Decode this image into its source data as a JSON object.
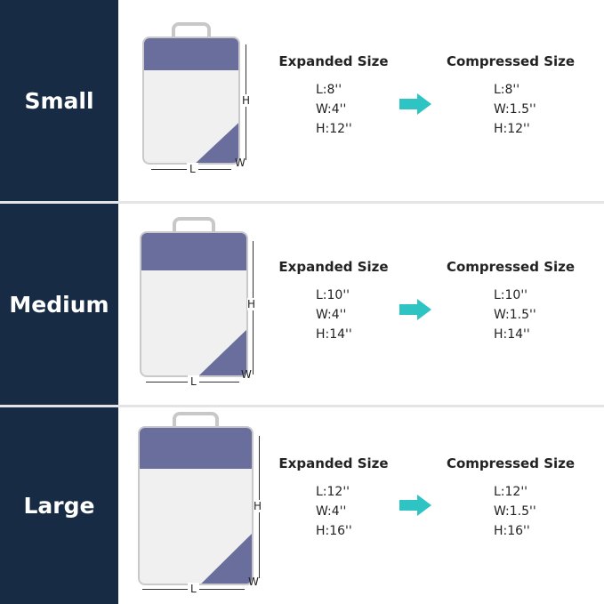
{
  "headers": {
    "expanded": "Expanded Size",
    "compressed": "Compressed Size"
  },
  "dimension_labels": {
    "length": "L",
    "width": "W",
    "height": "H"
  },
  "colors": {
    "sidebar": "#172c44",
    "arrow": "#2ec4c4",
    "bag_accent": "#6a6e9c"
  },
  "sizes": [
    {
      "name": "Small",
      "expanded": {
        "l": "L:8''",
        "w": "W:4''",
        "h": "H:12''"
      },
      "compressed": {
        "l": "L:8''",
        "w": "W:1.5''",
        "h": "H:12''"
      }
    },
    {
      "name": "Medium",
      "expanded": {
        "l": "L:10''",
        "w": "W:4''",
        "h": "H:14''"
      },
      "compressed": {
        "l": "L:10''",
        "w": "W:1.5''",
        "h": "H:14''"
      }
    },
    {
      "name": "Large",
      "expanded": {
        "l": "L:12''",
        "w": "W:4''",
        "h": "H:16''"
      },
      "compressed": {
        "l": "L:12''",
        "w": "W:1.5''",
        "h": "H:16''"
      }
    }
  ]
}
